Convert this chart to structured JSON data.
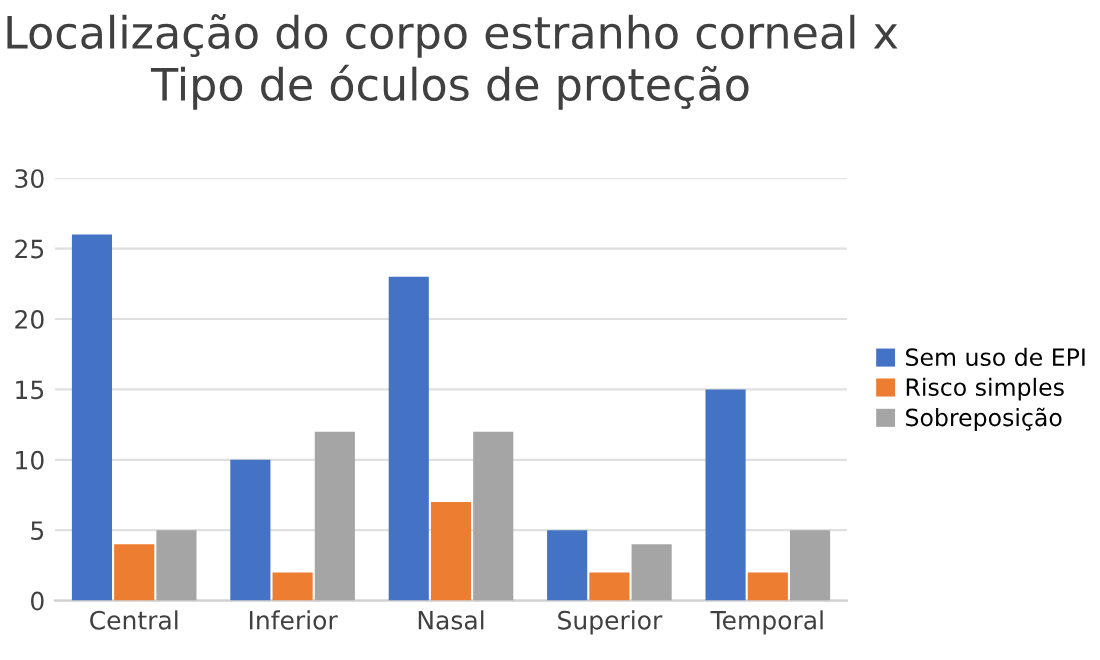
{
  "chart_data": {
    "type": "bar",
    "title": "Localização do corpo estranho corneal x\nTipo de óculos de proteção",
    "categories": [
      "Central",
      "Inferior",
      "Nasal",
      "Superior",
      "Temporal"
    ],
    "series": [
      {
        "name": "Sem uso de EPI",
        "color": "#4472c4",
        "values": [
          26,
          10,
          23,
          5,
          15
        ]
      },
      {
        "name": "Risco simples",
        "color": "#ed7d31",
        "values": [
          4,
          2,
          7,
          2,
          2
        ]
      },
      {
        "name": "Sobreposição",
        "color": "#a5a5a5",
        "values": [
          5,
          12,
          12,
          4,
          5
        ]
      }
    ],
    "ylim": [
      0,
      30
    ],
    "yticks": [
      0,
      5,
      10,
      15,
      20,
      25,
      30
    ],
    "grid": "y",
    "legend": "right"
  }
}
